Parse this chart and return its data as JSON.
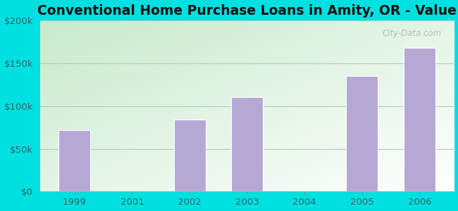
{
  "title": "Conventional Home Purchase Loans in Amity, OR - Value",
  "categories": [
    1999,
    2001,
    2002,
    2003,
    2004,
    2005,
    2006
  ],
  "values": [
    72000,
    0,
    84000,
    110000,
    0,
    135000,
    168000
  ],
  "bar_color": "#b5a8d5",
  "background_outer": "#00e0e0",
  "ylim": [
    0,
    200000
  ],
  "yticks": [
    0,
    50000,
    100000,
    150000,
    200000
  ],
  "ytick_labels": [
    "$0",
    "$50k",
    "$100k",
    "$150k",
    "$200k"
  ],
  "title_fontsize": 13.5,
  "tick_fontsize": 9.5,
  "tick_color": "#336666",
  "bar_width": 0.55,
  "watermark": "City-Data.com",
  "grid_color": "#b0ccbb",
  "bottom_spine_color": "#aaaaaa"
}
